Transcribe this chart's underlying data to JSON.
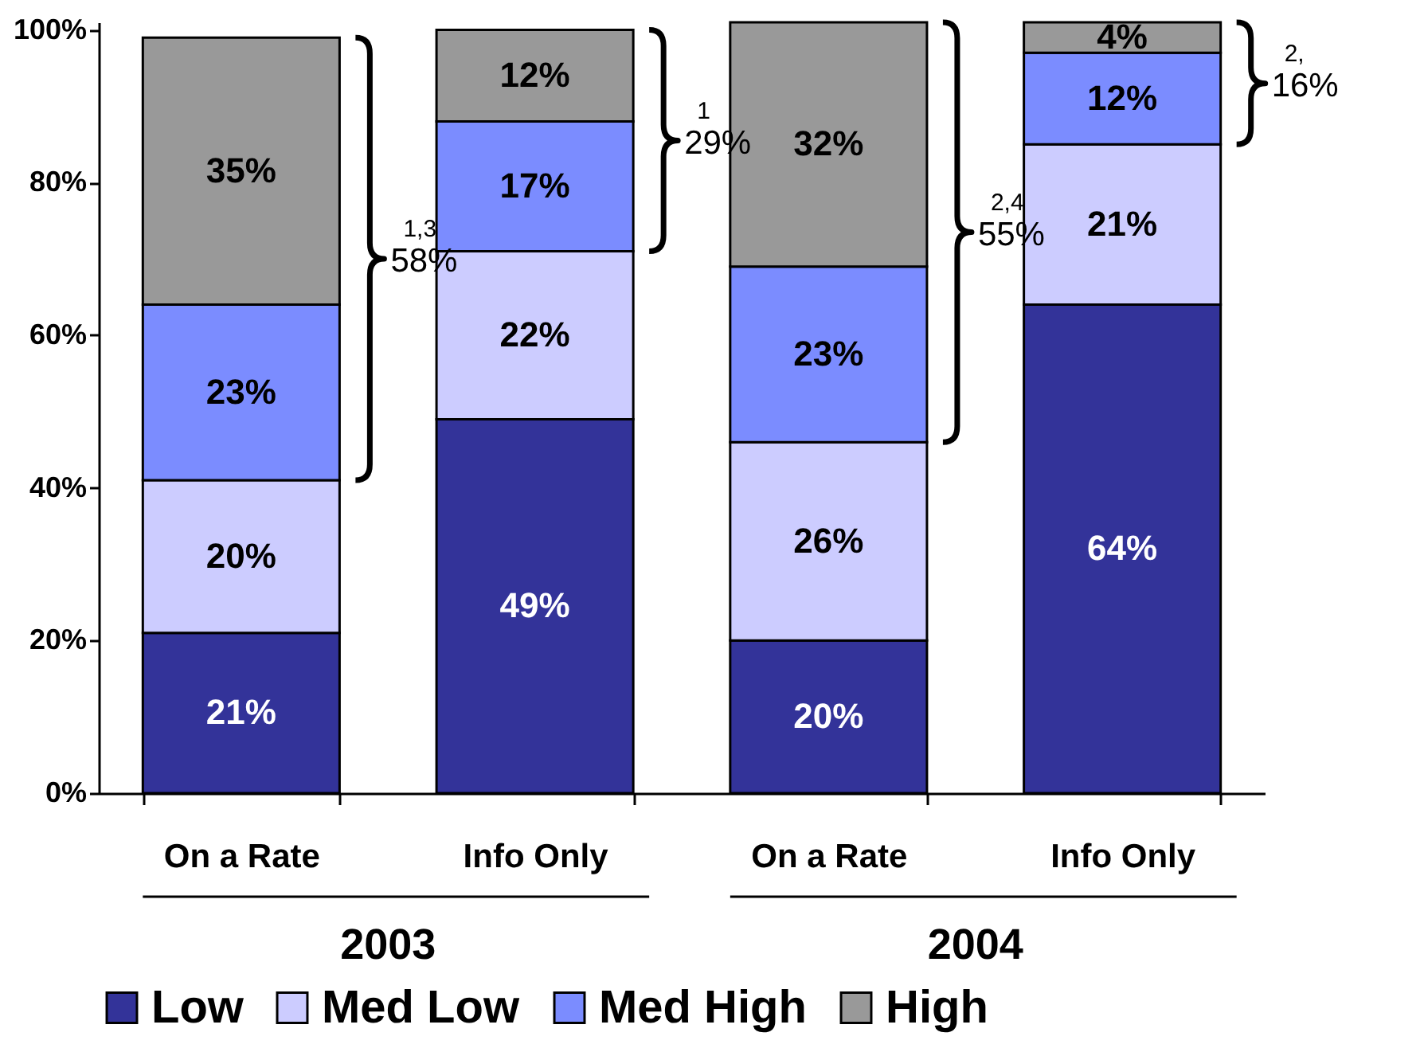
{
  "chart_data": {
    "type": "bar",
    "stacked": true,
    "categories": [
      "On a Rate",
      "Info Only",
      "On a Rate",
      "Info Only"
    ],
    "series": [
      {
        "name": "Low",
        "color": "#333399",
        "values": [
          21,
          49,
          20,
          64
        ],
        "value_labels": [
          "21%",
          "49%",
          "20%",
          "64%"
        ]
      },
      {
        "name": "Med Low",
        "color": "#ccccff",
        "values": [
          20,
          22,
          26,
          21
        ],
        "value_labels": [
          "20%",
          "22%",
          "26%",
          "21%"
        ]
      },
      {
        "name": "Med High",
        "color": "#7b8cff",
        "values": [
          23,
          17,
          23,
          12
        ],
        "value_labels": [
          "23%",
          "17%",
          "23%",
          "12%"
        ]
      },
      {
        "name": "High",
        "color": "#999999",
        "values": [
          35,
          12,
          32,
          4
        ],
        "value_labels": [
          "35%",
          "12%",
          "32%",
          "4%"
        ]
      }
    ],
    "ylim": [
      0,
      101
    ],
    "yticks": [
      {
        "value": 0,
        "label": "0%"
      },
      {
        "value": 20,
        "label": "20%"
      },
      {
        "value": 40,
        "label": "40%"
      },
      {
        "value": 60,
        "label": "60%"
      },
      {
        "value": 80,
        "label": "80%"
      },
      {
        "value": 100,
        "label": "100%"
      }
    ],
    "grid": false,
    "legend": "bottom",
    "annotations": [
      "$^{1,3}$58%",
      "$^{1}$29%",
      "$^{2,4}$55%",
      "$^{2,}$16%",
      "2003",
      "2004"
    ]
  }
}
